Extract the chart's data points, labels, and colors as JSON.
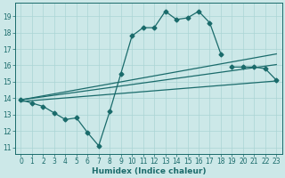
{
  "xlabel": "Humidex (Indice chaleur)",
  "bg_color": "#cce8e8",
  "line_color": "#1a6b6b",
  "grid_color": "#aad4d4",
  "xlim": [
    -0.5,
    23.5
  ],
  "ylim": [
    10.6,
    19.8
  ],
  "yticks": [
    11,
    12,
    13,
    14,
    15,
    16,
    17,
    18,
    19
  ],
  "xticks": [
    0,
    1,
    2,
    3,
    4,
    5,
    6,
    7,
    8,
    9,
    10,
    11,
    12,
    13,
    14,
    15,
    16,
    17,
    18,
    19,
    20,
    21,
    22,
    23
  ],
  "line1_x": [
    0,
    1,
    2,
    3,
    4,
    5,
    6,
    7,
    8,
    9,
    10,
    11,
    12,
    13,
    14,
    15,
    16,
    17,
    18
  ],
  "line1_y": [
    13.9,
    13.7,
    13.5,
    13.1,
    12.7,
    12.8,
    11.9,
    11.1,
    13.2,
    15.5,
    17.8,
    18.3,
    18.3,
    19.3,
    18.8,
    18.9,
    19.3,
    18.6,
    16.7
  ],
  "line2_x": [
    19,
    20,
    21,
    22,
    23
  ],
  "line2_y": [
    15.9,
    15.9,
    15.9,
    15.8,
    15.1
  ],
  "line3_x": [
    0,
    23
  ],
  "line3_y": [
    13.8,
    15.05
  ],
  "line4_x": [
    0,
    23
  ],
  "line4_y": [
    13.9,
    16.05
  ],
  "line5_x": [
    0,
    23
  ],
  "line5_y": [
    13.9,
    16.7
  ],
  "marker": "D",
  "markersize": 2.5,
  "lw": 0.9,
  "tick_fontsize": 5.5,
  "xlabel_fontsize": 6.5
}
